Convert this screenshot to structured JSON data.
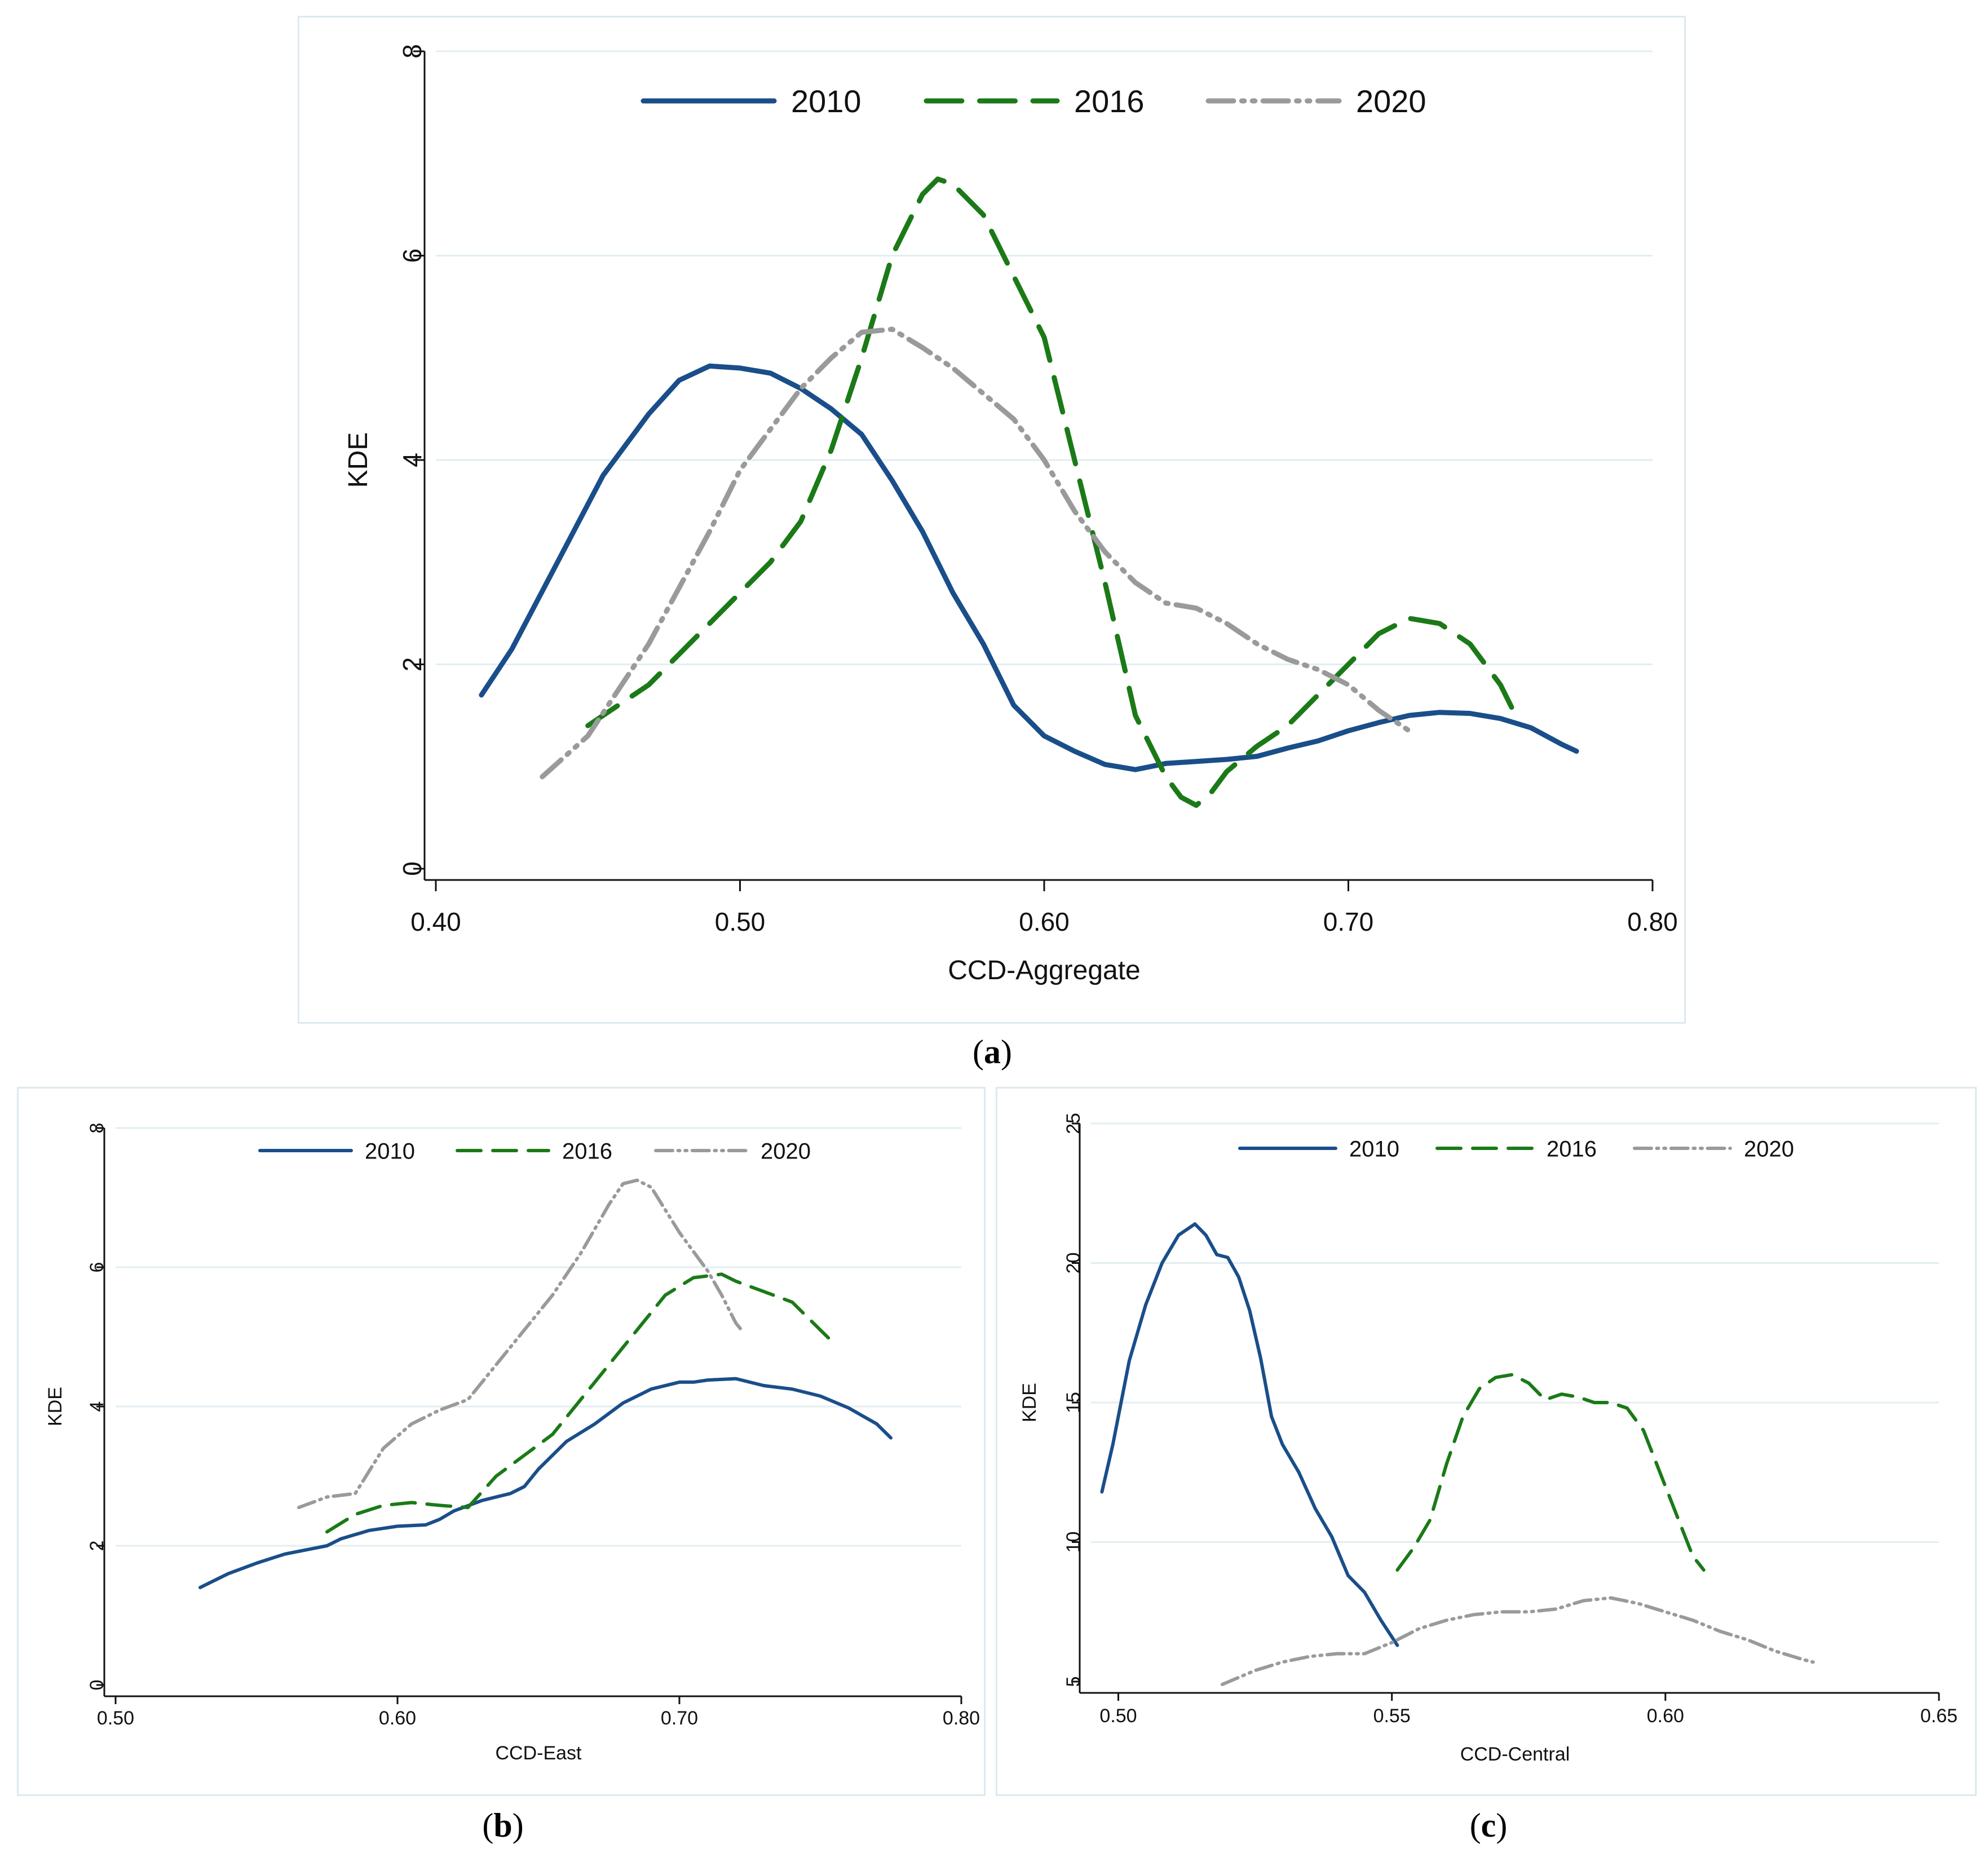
{
  "figure": {
    "captions": [
      {
        "open": "(",
        "letter": "a",
        "close": ")"
      },
      {
        "open": "(",
        "letter": "b",
        "close": ")"
      },
      {
        "open": "(",
        "letter": "c",
        "close": ")"
      }
    ]
  },
  "colors": {
    "series2010": "#1a4e8a",
    "series2016": "#1b7a17",
    "series2020": "#9a9a9a",
    "grid": "#e2eef1",
    "panel_border": "#dde9ee"
  },
  "chart_data": [
    {
      "id": "a",
      "type": "line",
      "xlabel": "CCD-Aggregate",
      "ylabel": "KDE",
      "xlim": [
        0.4,
        0.8
      ],
      "ylim": [
        0,
        8
      ],
      "xticks": [
        0.4,
        0.5,
        0.6,
        0.7,
        0.8
      ],
      "xtick_labels": [
        "0.40",
        "0.50",
        "0.60",
        "0.70",
        "0.80"
      ],
      "yticks": [
        0,
        2,
        4,
        6,
        8
      ],
      "ytick_labels": [
        "0",
        "2",
        "4",
        "6",
        "8"
      ],
      "grid": true,
      "legend": "top",
      "series": [
        {
          "name": "2010",
          "style": "solid",
          "x": [
            0.415,
            0.425,
            0.44,
            0.455,
            0.47,
            0.48,
            0.49,
            0.5,
            0.51,
            0.52,
            0.53,
            0.54,
            0.55,
            0.56,
            0.57,
            0.58,
            0.59,
            0.6,
            0.61,
            0.62,
            0.63,
            0.635,
            0.64,
            0.65,
            0.66,
            0.67,
            0.68,
            0.69,
            0.7,
            0.71,
            0.72,
            0.73,
            0.74,
            0.75,
            0.76,
            0.77,
            0.775
          ],
          "y": [
            1.7,
            2.15,
            3.0,
            3.85,
            4.45,
            4.78,
            4.92,
            4.9,
            4.85,
            4.7,
            4.5,
            4.25,
            3.8,
            3.3,
            2.7,
            2.2,
            1.6,
            1.3,
            1.15,
            1.02,
            0.97,
            1.0,
            1.03,
            1.05,
            1.07,
            1.1,
            1.18,
            1.25,
            1.35,
            1.43,
            1.5,
            1.53,
            1.52,
            1.47,
            1.38,
            1.22,
            1.15
          ]
        },
        {
          "name": "2016",
          "style": "dashed",
          "x": [
            0.45,
            0.47,
            0.49,
            0.51,
            0.52,
            0.53,
            0.54,
            0.55,
            0.56,
            0.565,
            0.57,
            0.58,
            0.59,
            0.6,
            0.61,
            0.62,
            0.63,
            0.64,
            0.645,
            0.65,
            0.655,
            0.66,
            0.67,
            0.68,
            0.69,
            0.7,
            0.71,
            0.72,
            0.73,
            0.74,
            0.75,
            0.755
          ],
          "y": [
            1.4,
            1.8,
            2.4,
            3.0,
            3.4,
            4.1,
            5.0,
            6.0,
            6.6,
            6.75,
            6.7,
            6.4,
            5.8,
            5.2,
            4.0,
            2.8,
            1.5,
            0.9,
            0.7,
            0.62,
            0.75,
            0.95,
            1.2,
            1.4,
            1.7,
            2.0,
            2.3,
            2.45,
            2.4,
            2.2,
            1.8,
            1.5
          ]
        },
        {
          "name": "2020",
          "style": "dash-dot-dot",
          "x": [
            0.435,
            0.45,
            0.47,
            0.49,
            0.5,
            0.51,
            0.52,
            0.53,
            0.54,
            0.55,
            0.56,
            0.57,
            0.58,
            0.59,
            0.6,
            0.61,
            0.62,
            0.63,
            0.64,
            0.65,
            0.66,
            0.67,
            0.68,
            0.69,
            0.7,
            0.71,
            0.72
          ],
          "y": [
            0.9,
            1.3,
            2.2,
            3.3,
            3.9,
            4.3,
            4.7,
            5.0,
            5.25,
            5.28,
            5.1,
            4.9,
            4.65,
            4.4,
            4.0,
            3.5,
            3.1,
            2.8,
            2.6,
            2.55,
            2.4,
            2.2,
            2.05,
            1.95,
            1.8,
            1.55,
            1.35
          ]
        }
      ]
    },
    {
      "id": "b",
      "type": "line",
      "xlabel": "CCD-East",
      "ylabel": "KDE",
      "xlim": [
        0.5,
        0.8
      ],
      "ylim": [
        0,
        8
      ],
      "xticks": [
        0.5,
        0.6,
        0.7,
        0.8
      ],
      "xtick_labels": [
        "0.50",
        "0.60",
        "0.70",
        "0.80"
      ],
      "yticks": [
        0,
        2,
        4,
        6,
        8
      ],
      "ytick_labels": [
        "0",
        "2",
        "4",
        "6",
        "8"
      ],
      "grid": true,
      "legend": "top",
      "series": [
        {
          "name": "2010",
          "style": "solid",
          "x": [
            0.53,
            0.54,
            0.55,
            0.56,
            0.57,
            0.575,
            0.58,
            0.59,
            0.6,
            0.61,
            0.615,
            0.62,
            0.63,
            0.64,
            0.645,
            0.65,
            0.66,
            0.67,
            0.68,
            0.69,
            0.7,
            0.705,
            0.71,
            0.72,
            0.73,
            0.74,
            0.75,
            0.76,
            0.77,
            0.775
          ],
          "y": [
            1.4,
            1.6,
            1.75,
            1.88,
            1.96,
            2.0,
            2.1,
            2.22,
            2.28,
            2.3,
            2.38,
            2.5,
            2.65,
            2.75,
            2.85,
            3.1,
            3.5,
            3.75,
            4.05,
            4.25,
            4.35,
            4.35,
            4.38,
            4.4,
            4.3,
            4.25,
            4.15,
            3.98,
            3.75,
            3.55
          ]
        },
        {
          "name": "2016",
          "style": "dashed",
          "x": [
            0.575,
            0.585,
            0.595,
            0.605,
            0.615,
            0.625,
            0.635,
            0.645,
            0.655,
            0.665,
            0.675,
            0.685,
            0.695,
            0.705,
            0.715,
            0.72,
            0.73,
            0.74,
            0.75,
            0.755
          ],
          "y": [
            2.2,
            2.45,
            2.58,
            2.62,
            2.58,
            2.55,
            3.0,
            3.3,
            3.6,
            4.1,
            4.6,
            5.1,
            5.6,
            5.85,
            5.9,
            5.8,
            5.65,
            5.5,
            5.1,
            4.9
          ]
        },
        {
          "name": "2020",
          "style": "dash-dot-dot",
          "x": [
            0.565,
            0.575,
            0.585,
            0.595,
            0.605,
            0.615,
            0.625,
            0.635,
            0.645,
            0.655,
            0.665,
            0.675,
            0.68,
            0.685,
            0.69,
            0.7,
            0.71,
            0.715,
            0.72,
            0.722
          ],
          "y": [
            2.55,
            2.7,
            2.75,
            3.4,
            3.75,
            3.95,
            4.1,
            4.6,
            5.1,
            5.6,
            6.2,
            6.9,
            7.2,
            7.25,
            7.15,
            6.5,
            5.95,
            5.6,
            5.2,
            5.1
          ]
        }
      ]
    },
    {
      "id": "c",
      "type": "line",
      "xlabel": "CCD-Central",
      "ylabel": "KDE",
      "xlim": [
        0.495,
        0.65
      ],
      "ylim": [
        5,
        25
      ],
      "xticks": [
        0.5,
        0.55,
        0.6,
        0.65
      ],
      "xtick_labels": [
        "0.50",
        "0.55",
        "0.60",
        "0.65"
      ],
      "yticks": [
        5,
        10,
        15,
        20,
        25
      ],
      "ytick_labels": [
        "5",
        "10",
        "15",
        "20",
        "25"
      ],
      "grid": true,
      "legend": "top",
      "series": [
        {
          "name": "2010",
          "style": "solid",
          "x": [
            0.497,
            0.499,
            0.502,
            0.505,
            0.508,
            0.511,
            0.514,
            0.516,
            0.518,
            0.52,
            0.522,
            0.524,
            0.526,
            0.528,
            0.53,
            0.533,
            0.536,
            0.539,
            0.542,
            0.545,
            0.548,
            0.551
          ],
          "y": [
            11.8,
            13.5,
            16.5,
            18.5,
            20.0,
            21.0,
            21.4,
            21.0,
            20.3,
            20.2,
            19.5,
            18.3,
            16.6,
            14.5,
            13.5,
            12.5,
            11.2,
            10.2,
            8.8,
            8.2,
            7.2,
            6.3
          ]
        },
        {
          "name": "2016",
          "style": "dashed",
          "x": [
            0.551,
            0.554,
            0.557,
            0.56,
            0.563,
            0.566,
            0.569,
            0.572,
            0.575,
            0.578,
            0.581,
            0.584,
            0.587,
            0.59,
            0.593,
            0.596,
            0.599,
            0.602,
            0.605,
            0.607
          ],
          "y": [
            9.0,
            9.8,
            10.8,
            12.8,
            14.5,
            15.5,
            15.9,
            16.0,
            15.7,
            15.1,
            15.3,
            15.2,
            15.0,
            15.0,
            14.8,
            14.0,
            12.5,
            11.0,
            9.5,
            9.0
          ]
        },
        {
          "name": "2020",
          "style": "dash-dot-dot",
          "x": [
            0.519,
            0.525,
            0.53,
            0.535,
            0.54,
            0.545,
            0.55,
            0.555,
            0.56,
            0.565,
            0.57,
            0.575,
            0.58,
            0.585,
            0.59,
            0.595,
            0.6,
            0.605,
            0.61,
            0.615,
            0.62,
            0.625,
            0.627
          ],
          "y": [
            4.9,
            5.4,
            5.7,
            5.9,
            6.0,
            6.0,
            6.4,
            6.9,
            7.2,
            7.4,
            7.5,
            7.5,
            7.6,
            7.9,
            8.0,
            7.8,
            7.5,
            7.2,
            6.8,
            6.5,
            6.1,
            5.8,
            5.7
          ]
        }
      ]
    }
  ]
}
